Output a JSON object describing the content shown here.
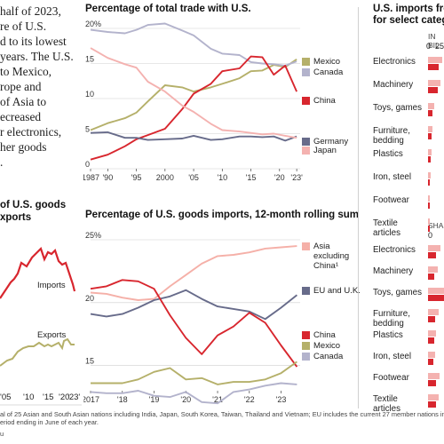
{
  "intro_text": [
    "half of 2023,",
    "re of U.S.",
    "d to its lowest",
    "years. The U.S.",
    "to Mexico,",
    "rope and",
    "of Asia to",
    "ecreased",
    "r electronics,",
    "her goods",
    "."
  ],
  "colors": {
    "mexico": "#b5b06a",
    "canada": "#b3b3cc",
    "china": "#d8262e",
    "germany": "#676b8a",
    "japan": "#f4b2b0",
    "asia": "#f5b0a8",
    "eu": "#676b8a",
    "grid": "#cfcfcf",
    "exports": "#b5b06a",
    "imports": "#d8262e"
  },
  "left_chart": {
    "title_lines": [
      "of U.S. goods",
      "xports"
    ],
    "labels": {
      "imports": "Imports",
      "exports": "Exports"
    },
    "x_ticks": [
      "'05",
      "'10",
      "'15",
      "'20",
      "'23'"
    ]
  },
  "right_panel": {
    "title_lines": [
      "U.S. imports fro",
      "for select catego"
    ],
    "top_header": "IN BIL",
    "top_ticks": [
      "0",
      "25"
    ],
    "bottom_header": "SHAR",
    "bottom_ticks": [
      "0"
    ]
  },
  "footnote_lines": [
    "al of 25 Asian and South Asian nations including India, Japan, South Korea, Taiwan, Thailand and Vietnam; EU includes the current 27 member nations in all yea",
    "eriod ending in June of each year."
  ],
  "footer_tag": "u",
  "chart_data": [
    {
      "type": "line",
      "title": "Percentage of total trade with U.S.",
      "x": [
        1987,
        1990,
        1993,
        1995,
        1997,
        2000,
        2003,
        2005,
        2008,
        2010,
        2013,
        2015,
        2017,
        2019,
        2021,
        2023
      ],
      "x_ticks": [
        1987,
        1990,
        1995,
        2000,
        2005,
        2010,
        2015,
        2020,
        2023
      ],
      "x_tick_labels": [
        "1987",
        "'90",
        "'95",
        "2000",
        "'05",
        "'10",
        "'15",
        "'20",
        "'23'"
      ],
      "ylim": [
        0,
        20
      ],
      "y_ticks": [
        0,
        5,
        10,
        15,
        20
      ],
      "y_tick_labels": [
        "0",
        "5",
        "10",
        "15",
        "20%"
      ],
      "grid": true,
      "series": [
        {
          "name": "Mexico",
          "color_key": "mexico",
          "values": [
            5.5,
            6.5,
            7.2,
            8.0,
            9.6,
            11.9,
            11.6,
            11.0,
            11.6,
            12.1,
            12.9,
            13.9,
            14.0,
            14.8,
            14.5,
            15.6
          ]
        },
        {
          "name": "Canada",
          "color_key": "canada",
          "values": [
            19.8,
            19.5,
            19.3,
            19.8,
            20.5,
            20.7,
            19.7,
            19.0,
            17.1,
            16.4,
            16.2,
            15.2,
            15.0,
            14.9,
            14.7,
            15.3
          ]
        },
        {
          "name": "China",
          "color_key": "china",
          "values": [
            1.3,
            2.0,
            3.2,
            4.2,
            4.8,
            5.7,
            8.5,
            10.7,
            12.1,
            13.9,
            14.3,
            16.0,
            15.9,
            13.4,
            14.7,
            11.0
          ]
        },
        {
          "name": "Germany",
          "color_key": "germany",
          "values": [
            5.1,
            5.2,
            4.4,
            4.4,
            4.1,
            4.2,
            4.3,
            4.7,
            4.1,
            4.2,
            4.6,
            4.6,
            4.5,
            4.6,
            4.0,
            4.6
          ]
        },
        {
          "name": "Japan",
          "color_key": "japan",
          "values": [
            17.2,
            15.8,
            14.9,
            14.4,
            12.4,
            11.0,
            9.0,
            8.1,
            6.4,
            5.5,
            5.3,
            5.1,
            4.9,
            5.0,
            4.7,
            4.4
          ]
        }
      ],
      "legend": "right"
    },
    {
      "type": "line",
      "title": "Percentage of U.S. goods imports, 12-month rolling sum",
      "x": [
        2017.0,
        2017.5,
        2018.0,
        2018.5,
        2019.0,
        2019.5,
        2020.0,
        2020.5,
        2021.0,
        2021.5,
        2022.0,
        2022.5,
        2023.0,
        2023.5
      ],
      "x_ticks": [
        2017,
        2018,
        2019,
        2020,
        2021,
        2022,
        2023
      ],
      "x_tick_labels": [
        "2017",
        "'18",
        "'19",
        "'20",
        "'21",
        "'22",
        "'23"
      ],
      "ylim": [
        13,
        25
      ],
      "y_ticks": [
        15,
        20,
        25
      ],
      "y_tick_labels": [
        "15",
        "20",
        "25%"
      ],
      "grid": true,
      "series": [
        {
          "name": "Asia excluding China¹",
          "color_key": "asia",
          "values": [
            20.8,
            20.7,
            20.4,
            20.2,
            20.3,
            21.3,
            22.2,
            23.1,
            23.7,
            23.8,
            24.0,
            24.3,
            24.4,
            24.5
          ]
        },
        {
          "name": "EU and U.K.",
          "color_key": "eu",
          "values": [
            19.1,
            18.9,
            19.1,
            19.6,
            20.2,
            20.5,
            21.0,
            20.3,
            19.7,
            19.5,
            19.3,
            18.7,
            19.6,
            20.6
          ]
        },
        {
          "name": "China",
          "color_key": "china",
          "values": [
            21.1,
            21.3,
            21.8,
            21.7,
            21.1,
            19.0,
            17.2,
            15.9,
            17.4,
            18.1,
            19.2,
            18.4,
            16.6,
            14.9
          ]
        },
        {
          "name": "Mexico",
          "color_key": "mexico",
          "values": [
            13.6,
            13.6,
            13.6,
            13.9,
            14.5,
            14.8,
            13.9,
            14.0,
            13.5,
            13.7,
            13.7,
            13.9,
            14.4,
            15.3
          ]
        },
        {
          "name": "Canada",
          "color_key": "canada",
          "values": [
            12.9,
            12.8,
            12.8,
            13.0,
            12.6,
            12.5,
            12.9,
            12.1,
            12.0,
            12.9,
            13.1,
            13.4,
            13.6,
            13.5
          ]
        }
      ],
      "legend": "right"
    },
    {
      "type": "bar",
      "categories": [
        "Electronics",
        "Machinery",
        "Toys, games",
        "Furniture, bedding",
        "Plastics",
        "Iron, steel",
        "Footwear",
        "Textile articles"
      ],
      "top_series": [
        {
          "values": [
            62,
            55,
            28,
            21,
            16,
            13,
            9,
            7
          ]
        },
        {
          "values": [
            48,
            44,
            20,
            14,
            12,
            8,
            7,
            6
          ]
        }
      ],
      "bottom_series": [
        {
          "values": [
            54,
            42,
            82,
            46,
            34,
            32,
            50,
            46
          ]
        },
        {
          "values": [
            36,
            28,
            70,
            32,
            26,
            22,
            36,
            37
          ]
        }
      ]
    }
  ]
}
